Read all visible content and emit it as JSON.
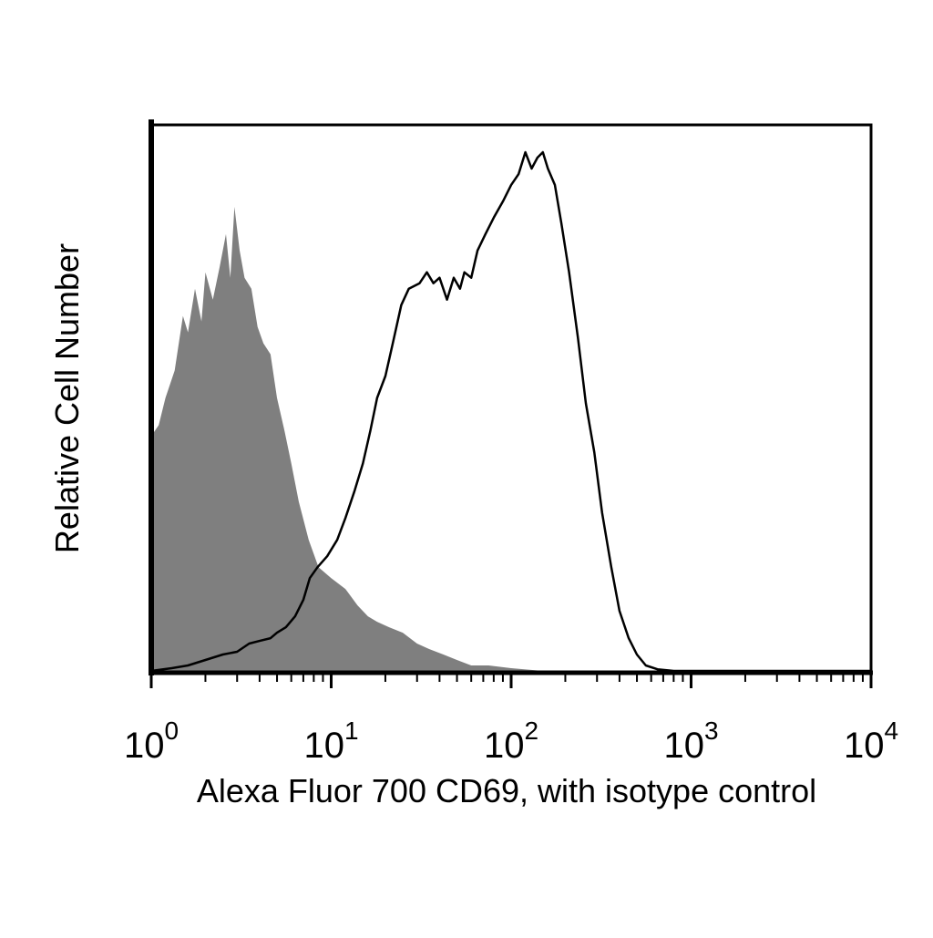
{
  "chart_data": {
    "type": "area",
    "title": "",
    "xlabel": "Alexa Fluor 700 CD69, with isotype control",
    "ylabel": "Relative Cell Number",
    "x_scale": "log",
    "xlim": [
      1,
      10000
    ],
    "ylim": [
      0,
      1
    ],
    "grid": false,
    "legend": "none",
    "x_ticks": [
      {
        "base": "10",
        "exp": "0",
        "value": 1
      },
      {
        "base": "10",
        "exp": "1",
        "value": 10
      },
      {
        "base": "10",
        "exp": "2",
        "value": 100
      },
      {
        "base": "10",
        "exp": "3",
        "value": 1000
      },
      {
        "base": "10",
        "exp": "4",
        "value": 10000
      }
    ],
    "series": [
      {
        "style": "filled",
        "color": "#7f7f7f",
        "points": [
          [
            1.0,
            0.43
          ],
          [
            1.1,
            0.45
          ],
          [
            1.2,
            0.5
          ],
          [
            1.35,
            0.55
          ],
          [
            1.5,
            0.65
          ],
          [
            1.6,
            0.62
          ],
          [
            1.75,
            0.7
          ],
          [
            1.9,
            0.64
          ],
          [
            2.0,
            0.73
          ],
          [
            2.2,
            0.68
          ],
          [
            2.4,
            0.74
          ],
          [
            2.6,
            0.8
          ],
          [
            2.75,
            0.72
          ],
          [
            2.9,
            0.85
          ],
          [
            3.1,
            0.77
          ],
          [
            3.3,
            0.72
          ],
          [
            3.6,
            0.7
          ],
          [
            3.9,
            0.63
          ],
          [
            4.2,
            0.6
          ],
          [
            4.6,
            0.58
          ],
          [
            5.0,
            0.5
          ],
          [
            5.5,
            0.44
          ],
          [
            6.0,
            0.38
          ],
          [
            6.6,
            0.31
          ],
          [
            7.5,
            0.24
          ],
          [
            8.5,
            0.19
          ],
          [
            10.0,
            0.17
          ],
          [
            12.0,
            0.15
          ],
          [
            14.0,
            0.12
          ],
          [
            16.0,
            0.1
          ],
          [
            18.0,
            0.09
          ],
          [
            21.0,
            0.08
          ],
          [
            25.0,
            0.07
          ],
          [
            30.0,
            0.05
          ],
          [
            35.0,
            0.04
          ],
          [
            42.0,
            0.03
          ],
          [
            50.0,
            0.02
          ],
          [
            60.0,
            0.01
          ],
          [
            75.0,
            0.01
          ],
          [
            100.0,
            0.005
          ],
          [
            150.0,
            0.0
          ],
          [
            10000,
            0.0
          ]
        ]
      },
      {
        "style": "outline",
        "color": "#000000",
        "points": [
          [
            1.0,
            0.0
          ],
          [
            1.3,
            0.005
          ],
          [
            1.6,
            0.01
          ],
          [
            2.0,
            0.02
          ],
          [
            2.5,
            0.03
          ],
          [
            3.0,
            0.035
          ],
          [
            3.5,
            0.05
          ],
          [
            4.0,
            0.055
          ],
          [
            4.6,
            0.06
          ],
          [
            5.0,
            0.07
          ],
          [
            5.6,
            0.08
          ],
          [
            6.3,
            0.1
          ],
          [
            7.0,
            0.13
          ],
          [
            7.6,
            0.17
          ],
          [
            8.4,
            0.19
          ],
          [
            9.5,
            0.21
          ],
          [
            10.8,
            0.24
          ],
          [
            12.0,
            0.28
          ],
          [
            13.5,
            0.33
          ],
          [
            15.0,
            0.38
          ],
          [
            16.5,
            0.44
          ],
          [
            18.0,
            0.5
          ],
          [
            20.0,
            0.54
          ],
          [
            22.0,
            0.6
          ],
          [
            24.5,
            0.67
          ],
          [
            27.0,
            0.7
          ],
          [
            31.0,
            0.71
          ],
          [
            34.0,
            0.73
          ],
          [
            37.0,
            0.71
          ],
          [
            40.0,
            0.72
          ],
          [
            44.0,
            0.68
          ],
          [
            48.0,
            0.72
          ],
          [
            52.0,
            0.7
          ],
          [
            55.0,
            0.73
          ],
          [
            60.0,
            0.72
          ],
          [
            65.0,
            0.77
          ],
          [
            72.0,
            0.8
          ],
          [
            80.0,
            0.83
          ],
          [
            90.0,
            0.86
          ],
          [
            100.0,
            0.89
          ],
          [
            110.0,
            0.91
          ],
          [
            120.0,
            0.95
          ],
          [
            130.0,
            0.92
          ],
          [
            140.0,
            0.94
          ],
          [
            150.0,
            0.95
          ],
          [
            160.0,
            0.92
          ],
          [
            175.0,
            0.89
          ],
          [
            190.0,
            0.82
          ],
          [
            210.0,
            0.73
          ],
          [
            235.0,
            0.61
          ],
          [
            260.0,
            0.49
          ],
          [
            290.0,
            0.4
          ],
          [
            320.0,
            0.29
          ],
          [
            360.0,
            0.19
          ],
          [
            400.0,
            0.11
          ],
          [
            450.0,
            0.06
          ],
          [
            500.0,
            0.03
          ],
          [
            560.0,
            0.01
          ],
          [
            650.0,
            0.003
          ],
          [
            800.0,
            0.0
          ],
          [
            10000,
            0.0
          ]
        ]
      }
    ]
  }
}
